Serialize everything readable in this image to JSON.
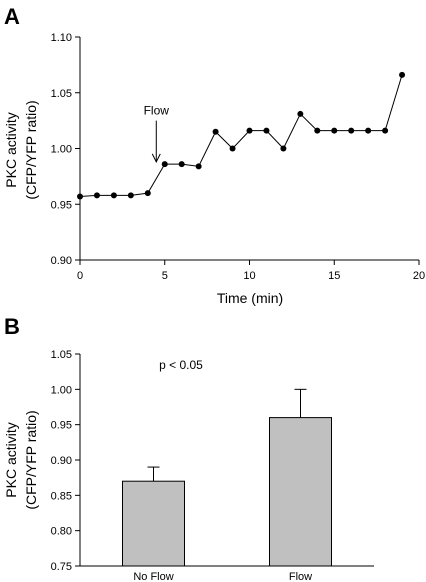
{
  "chart_data": [
    {
      "panel_label": "A",
      "type": "line",
      "xlabel": "Time (min)",
      "ylabel_lines": [
        "PKC activity",
        "(CFP/YFP ratio)"
      ],
      "xlim": [
        0,
        20
      ],
      "ylim": [
        0.9,
        1.1
      ],
      "xticks": [
        "0",
        "5",
        "10",
        "15",
        "20"
      ],
      "xtick_values": [
        0,
        5,
        10,
        15,
        20
      ],
      "yticks": [
        "0.90",
        "0.95",
        "1.00",
        "1.05",
        "1.10"
      ],
      "ytick_values": [
        0.9,
        0.95,
        1.0,
        1.05,
        1.1
      ],
      "x": [
        0,
        1,
        2,
        3,
        4,
        5,
        6,
        7,
        8,
        9,
        10,
        11,
        12,
        13,
        14,
        15,
        16,
        17,
        18,
        19
      ],
      "y": [
        0.957,
        0.958,
        0.958,
        0.958,
        0.96,
        0.986,
        0.986,
        0.984,
        1.015,
        1.0,
        1.016,
        1.016,
        1.0,
        1.031,
        1.016,
        1.016,
        1.016,
        1.016,
        1.016,
        1.066
      ],
      "annotation": {
        "text": "Flow",
        "x": 4.5,
        "arrow_tip_y": 0.988,
        "arrow_tail_y": 1.025
      }
    },
    {
      "panel_label": "B",
      "type": "bar",
      "ylabel_lines": [
        "PKC activity",
        "(CFP/YFP ratio)"
      ],
      "categories": [
        "No Flow",
        "Flow"
      ],
      "values": [
        0.87,
        0.96
      ],
      "errors": [
        0.02,
        0.04
      ],
      "ylim": [
        0.75,
        1.05
      ],
      "yticks": [
        "0.75",
        "0.80",
        "0.85",
        "0.90",
        "0.95",
        "1.00",
        "1.05"
      ],
      "ytick_values": [
        0.75,
        0.8,
        0.85,
        0.9,
        0.95,
        1.0,
        1.05
      ],
      "annotation": "p < 0.05",
      "bar_color": "#c0c0c0"
    }
  ]
}
